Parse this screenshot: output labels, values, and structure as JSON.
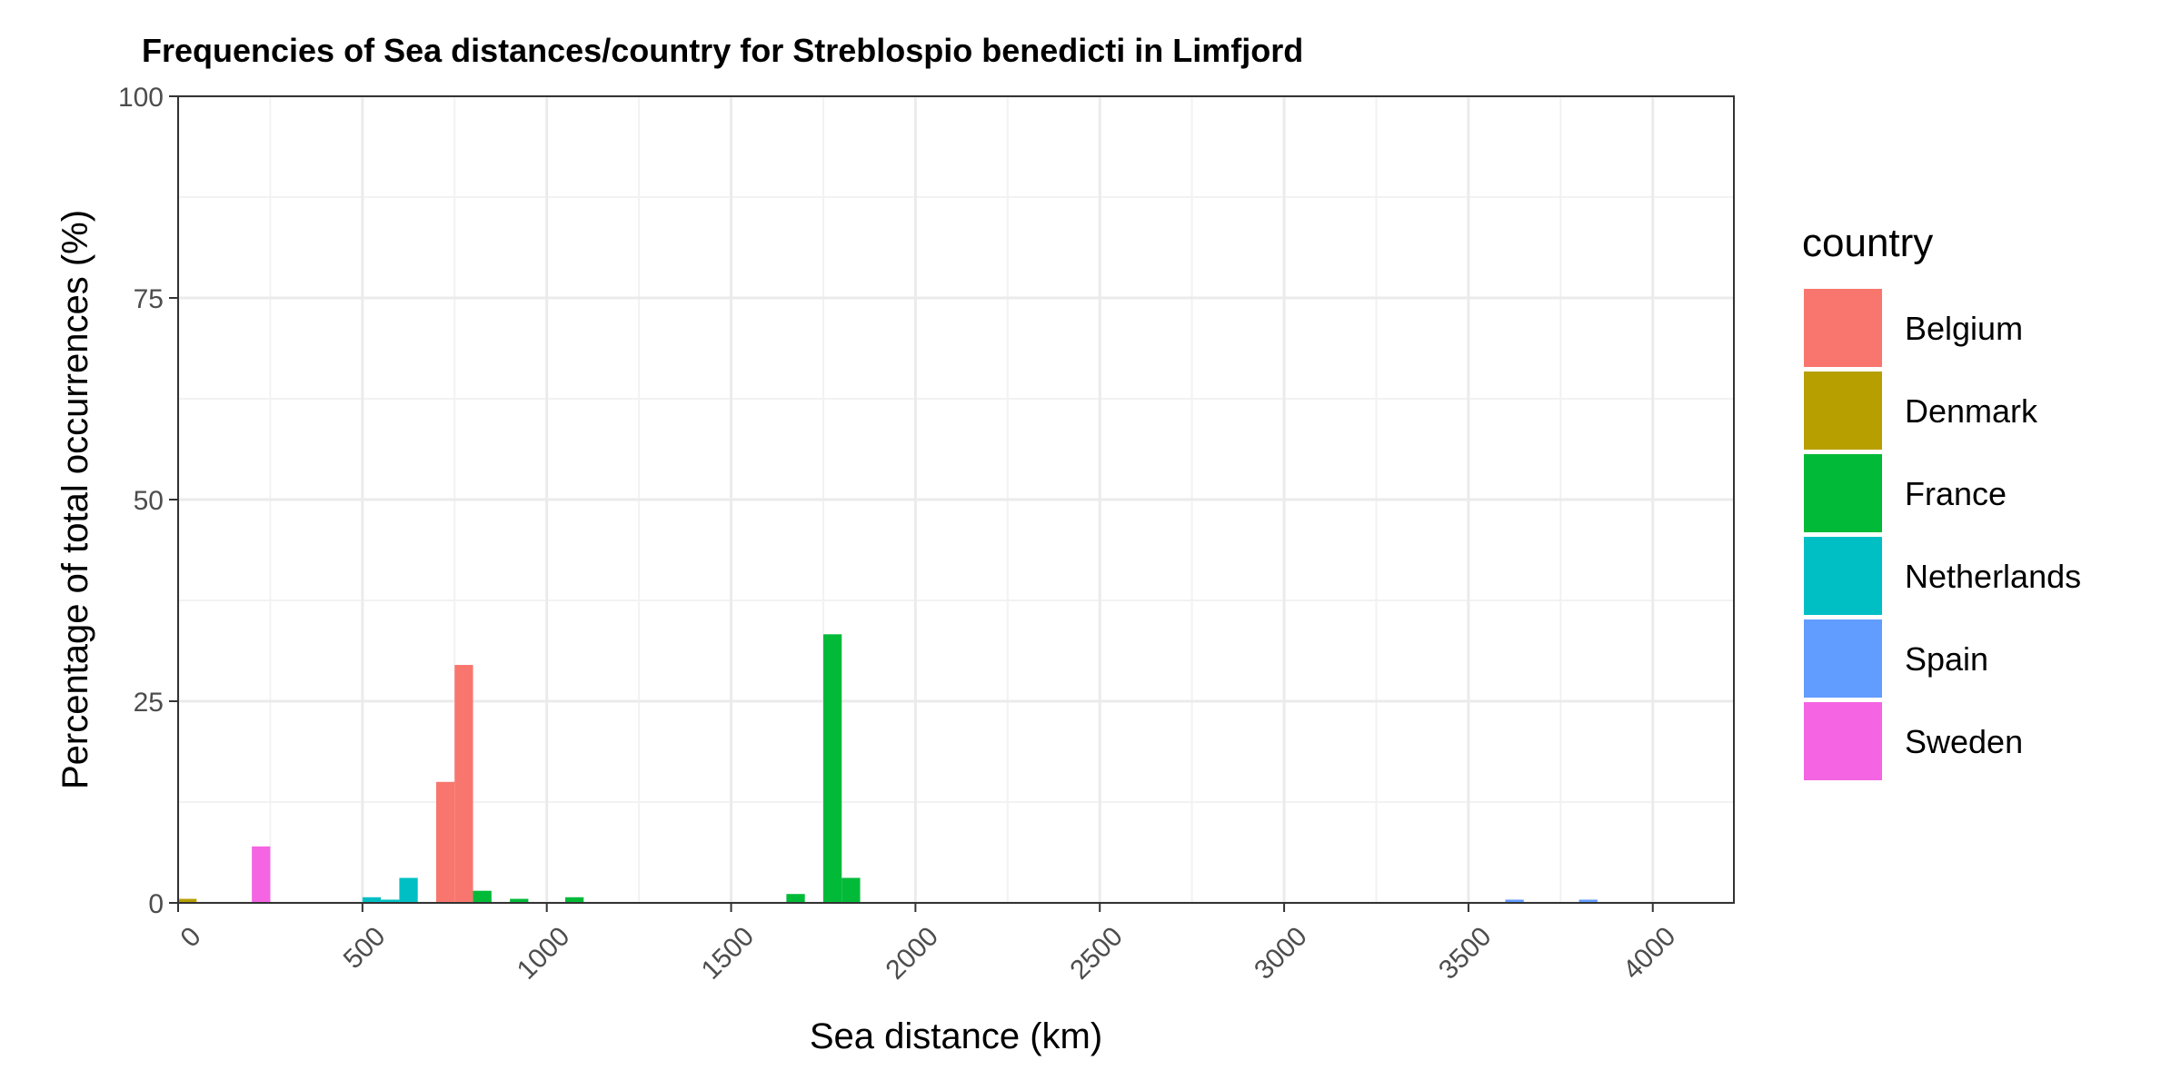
{
  "chart_data": {
    "type": "bar",
    "title": "Frequencies of Sea distances/country for Streblospio benedicti in Limfjord",
    "xlabel": "Sea distance (km)",
    "ylabel": "Percentage of total occurrences (%)",
    "xlim": [
      0,
      4220
    ],
    "ylim": [
      0,
      100
    ],
    "x_ticks": [
      "0",
      "500",
      "1000",
      "1500",
      "2000",
      "2500",
      "3000",
      "3500",
      "4000"
    ],
    "y_ticks": [
      "0",
      "25",
      "50",
      "75",
      "100"
    ],
    "bin_width_km": 50,
    "grid": true,
    "legend": {
      "title": "country",
      "placement": "right",
      "entries": [
        {
          "name": "Belgium",
          "color": "#F8766D"
        },
        {
          "name": "Denmark",
          "color": "#B79F00"
        },
        {
          "name": "France",
          "color": "#00BA38"
        },
        {
          "name": "Netherlands",
          "color": "#00BFC4"
        },
        {
          "name": "Spain",
          "color": "#619CFF"
        },
        {
          "name": "Sweden",
          "color": "#F564E3"
        }
      ]
    },
    "series": [
      {
        "name": "Belgium",
        "color": "#F8766D",
        "points": [
          {
            "x": 725,
            "y": 15
          },
          {
            "x": 775,
            "y": 29.5
          }
        ]
      },
      {
        "name": "Denmark",
        "color": "#B79F00",
        "points": [
          {
            "x": 25,
            "y": 0.5
          }
        ]
      },
      {
        "name": "France",
        "color": "#00BA38",
        "points": [
          {
            "x": 825,
            "y": 1.5
          },
          {
            "x": 925,
            "y": 0.5
          },
          {
            "x": 1075,
            "y": 0.7
          },
          {
            "x": 1675,
            "y": 1.1
          },
          {
            "x": 1775,
            "y": 33.3
          },
          {
            "x": 1825,
            "y": 3.1
          }
        ]
      },
      {
        "name": "Netherlands",
        "color": "#00BFC4",
        "points": [
          {
            "x": 525,
            "y": 0.7
          },
          {
            "x": 575,
            "y": 0.4
          },
          {
            "x": 625,
            "y": 3.1
          }
        ]
      },
      {
        "name": "Spain",
        "color": "#619CFF",
        "points": [
          {
            "x": 3625,
            "y": 0.4
          },
          {
            "x": 3825,
            "y": 0.4
          }
        ]
      },
      {
        "name": "Sweden",
        "color": "#F564E3",
        "points": [
          {
            "x": 225,
            "y": 7
          }
        ]
      }
    ]
  }
}
